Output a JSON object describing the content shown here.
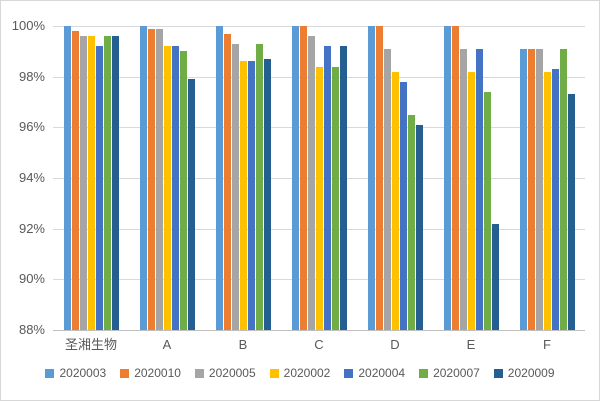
{
  "chart": {
    "background": "#FFFFFF",
    "border_color": "#D7D7D7",
    "gridline_color": "#D9D9D9",
    "axis_line_color": "#BFBFBF",
    "text_color": "#595959"
  },
  "chart_data": {
    "type": "bar",
    "title": "",
    "xlabel": "",
    "ylabel": "",
    "grid": true,
    "legend_position": "bottom",
    "ylim": [
      88,
      100
    ],
    "ytick_labels": [
      "100%",
      "98%",
      "96%",
      "94%",
      "92%",
      "90%",
      "88%"
    ],
    "ytick_values": [
      100,
      98,
      96,
      94,
      92,
      90,
      88
    ],
    "categories": [
      "圣湘生物",
      "A",
      "B",
      "C",
      "D",
      "E",
      "F"
    ],
    "series": [
      {
        "name": "2020003",
        "color": "#5B9BD5",
        "values": [
          100,
          100,
          100,
          100,
          100,
          100,
          99.1
        ]
      },
      {
        "name": "2020010",
        "color": "#ED7D31",
        "values": [
          99.8,
          99.9,
          99.7,
          100,
          100,
          100,
          99.1
        ]
      },
      {
        "name": "2020005",
        "color": "#A5A5A5",
        "values": [
          99.6,
          99.9,
          99.3,
          99.6,
          99.1,
          99.1,
          99.1
        ]
      },
      {
        "name": "2020002",
        "color": "#FFC000",
        "values": [
          99.6,
          99.2,
          98.6,
          98.4,
          98.2,
          98.2,
          98.2
        ]
      },
      {
        "name": "2020004",
        "color": "#4472C4",
        "values": [
          99.2,
          99.2,
          98.6,
          99.2,
          97.8,
          99.1,
          98.3
        ]
      },
      {
        "name": "2020007",
        "color": "#70AD47",
        "values": [
          99.6,
          99.0,
          99.3,
          98.4,
          96.5,
          97.4,
          99.1
        ]
      },
      {
        "name": "2020009",
        "color": "#255E91",
        "values": [
          99.6,
          97.9,
          98.7,
          99.2,
          96.1,
          92.2,
          97.3
        ]
      }
    ]
  }
}
